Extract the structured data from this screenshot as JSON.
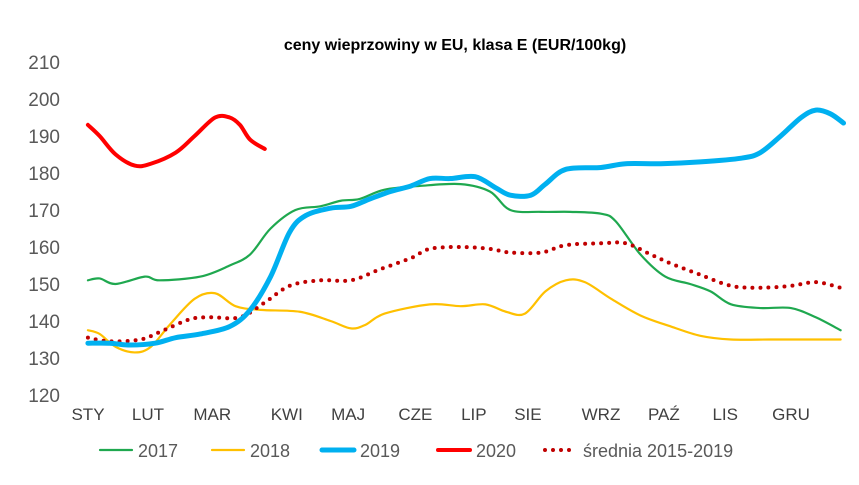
{
  "chart_data": {
    "type": "line",
    "title": "ceny wieprzowiny w EU, klasa E (EUR/100kg)",
    "xlabel": "",
    "ylabel": "",
    "ylim": [
      120,
      210
    ],
    "yticks": [
      "120",
      "130",
      "140",
      "150",
      "160",
      "170",
      "180",
      "190",
      "200",
      "210"
    ],
    "x_unit": "week of year",
    "xlim": [
      0,
      52
    ],
    "grid": false,
    "legend_position": "bottom",
    "month_ticks": [
      {
        "label": "STY",
        "week": 0
      },
      {
        "label": "LUT",
        "week": 4.1
      },
      {
        "label": "MAR",
        "week": 8.5
      },
      {
        "label": "KWI",
        "week": 13.6
      },
      {
        "label": "MAJ",
        "week": 17.8
      },
      {
        "label": "CZE",
        "week": 22.4
      },
      {
        "label": "LIP",
        "week": 26.4
      },
      {
        "label": "SIE",
        "week": 30.1
      },
      {
        "label": "WRZ",
        "week": 35.1
      },
      {
        "label": "PAŹ",
        "week": 39.4
      },
      {
        "label": "LIS",
        "week": 43.6
      },
      {
        "label": "GRU",
        "week": 48.1
      }
    ],
    "series": [
      {
        "name": "2017",
        "color": "#1fa84f",
        "style": "solid",
        "width": 2.2,
        "points": [
          [
            0.2,
            151
          ],
          [
            1.0,
            151.5
          ],
          [
            2.1,
            150
          ],
          [
            4.1,
            152
          ],
          [
            5.1,
            151
          ],
          [
            7.9,
            152
          ],
          [
            9.9,
            155
          ],
          [
            11.3,
            158
          ],
          [
            12.7,
            165
          ],
          [
            14.4,
            170
          ],
          [
            16.1,
            171
          ],
          [
            17.5,
            172.5
          ],
          [
            18.8,
            173
          ],
          [
            20.5,
            175.5
          ],
          [
            22.9,
            176.5
          ],
          [
            25.7,
            177
          ],
          [
            27.7,
            175
          ],
          [
            29.1,
            170
          ],
          [
            31.2,
            169.5
          ],
          [
            33.2,
            169.5
          ],
          [
            35.3,
            169
          ],
          [
            36.3,
            167
          ],
          [
            38.0,
            158
          ],
          [
            39.7,
            152
          ],
          [
            41.4,
            150
          ],
          [
            42.8,
            148
          ],
          [
            44.2,
            144.5
          ],
          [
            46.2,
            143.5
          ],
          [
            48.3,
            143.5
          ],
          [
            50.0,
            141
          ],
          [
            51.7,
            137.5
          ]
        ]
      },
      {
        "name": "2018",
        "color": "#ffc000",
        "style": "solid",
        "width": 2.2,
        "points": [
          [
            0.2,
            137.5
          ],
          [
            1.0,
            136.5
          ],
          [
            2.1,
            133
          ],
          [
            3.4,
            131.5
          ],
          [
            4.5,
            133
          ],
          [
            5.8,
            139
          ],
          [
            7.5,
            146
          ],
          [
            8.9,
            147.5
          ],
          [
            10.3,
            144
          ],
          [
            12.0,
            143
          ],
          [
            14.7,
            142.5
          ],
          [
            16.8,
            140
          ],
          [
            18.2,
            138
          ],
          [
            19.2,
            139
          ],
          [
            20.5,
            142
          ],
          [
            23.6,
            144.5
          ],
          [
            25.7,
            144
          ],
          [
            27.4,
            144.5
          ],
          [
            28.8,
            142.5
          ],
          [
            30.1,
            142
          ],
          [
            31.5,
            148
          ],
          [
            32.9,
            151
          ],
          [
            34.2,
            150.5
          ],
          [
            36.0,
            146
          ],
          [
            38.0,
            141.5
          ],
          [
            40.1,
            138.5
          ],
          [
            42.1,
            136
          ],
          [
            44.2,
            135
          ],
          [
            46.9,
            135
          ],
          [
            49.0,
            135
          ],
          [
            51.7,
            135
          ]
        ]
      },
      {
        "name": "2019",
        "color": "#00b0f0",
        "style": "solid",
        "width": 5,
        "points": [
          [
            0.2,
            134
          ],
          [
            1.7,
            134
          ],
          [
            3.1,
            133.5
          ],
          [
            4.8,
            134
          ],
          [
            6.2,
            135.5
          ],
          [
            7.9,
            136.5
          ],
          [
            9.9,
            138.5
          ],
          [
            11.3,
            143
          ],
          [
            12.7,
            152
          ],
          [
            14.0,
            164
          ],
          [
            15.1,
            168.5
          ],
          [
            16.8,
            170.5
          ],
          [
            18.2,
            171
          ],
          [
            19.5,
            173
          ],
          [
            20.9,
            175
          ],
          [
            22.3,
            176.5
          ],
          [
            23.6,
            178.5
          ],
          [
            25.0,
            178.5
          ],
          [
            26.7,
            179
          ],
          [
            28.1,
            176
          ],
          [
            29.1,
            174
          ],
          [
            30.5,
            174
          ],
          [
            31.5,
            177
          ],
          [
            32.9,
            181
          ],
          [
            35.3,
            181.5
          ],
          [
            37.0,
            182.5
          ],
          [
            39.4,
            182.5
          ],
          [
            42.1,
            183
          ],
          [
            44.9,
            184
          ],
          [
            46.2,
            185.5
          ],
          [
            47.6,
            190
          ],
          [
            49.0,
            195
          ],
          [
            50.0,
            197
          ],
          [
            51.0,
            196
          ],
          [
            51.9,
            193.5
          ]
        ]
      },
      {
        "name": "2020",
        "color": "#ff0000",
        "style": "solid",
        "width": 4,
        "points": [
          [
            0.2,
            193
          ],
          [
            1.0,
            190
          ],
          [
            2.1,
            185
          ],
          [
            3.4,
            182
          ],
          [
            4.5,
            182.5
          ],
          [
            6.2,
            185.5
          ],
          [
            7.5,
            190
          ],
          [
            8.9,
            195
          ],
          [
            9.9,
            195
          ],
          [
            10.6,
            193
          ],
          [
            11.3,
            189
          ],
          [
            12.3,
            186.5
          ]
        ]
      },
      {
        "name": "średnia 2015-2019",
        "color": "#c00000",
        "style": "dotted",
        "width": 4,
        "points": [
          [
            0.2,
            135.5
          ],
          [
            1.7,
            134.5
          ],
          [
            3.8,
            135
          ],
          [
            5.1,
            137
          ],
          [
            7.2,
            140.5
          ],
          [
            8.6,
            141
          ],
          [
            10.6,
            141
          ],
          [
            12.3,
            145
          ],
          [
            14.0,
            149.5
          ],
          [
            16.1,
            151
          ],
          [
            18.2,
            151
          ],
          [
            20.2,
            154
          ],
          [
            22.3,
            157
          ],
          [
            23.6,
            159.5
          ],
          [
            25.7,
            160
          ],
          [
            27.7,
            159.5
          ],
          [
            29.1,
            158.5
          ],
          [
            31.2,
            158.5
          ],
          [
            32.9,
            160.5
          ],
          [
            35.3,
            161
          ],
          [
            37.0,
            161
          ],
          [
            38.7,
            158
          ],
          [
            40.1,
            155.5
          ],
          [
            42.1,
            152.5
          ],
          [
            44.2,
            149.5
          ],
          [
            46.2,
            149
          ],
          [
            48.3,
            149.5
          ],
          [
            50.0,
            150.5
          ],
          [
            51.7,
            149
          ]
        ]
      }
    ]
  }
}
